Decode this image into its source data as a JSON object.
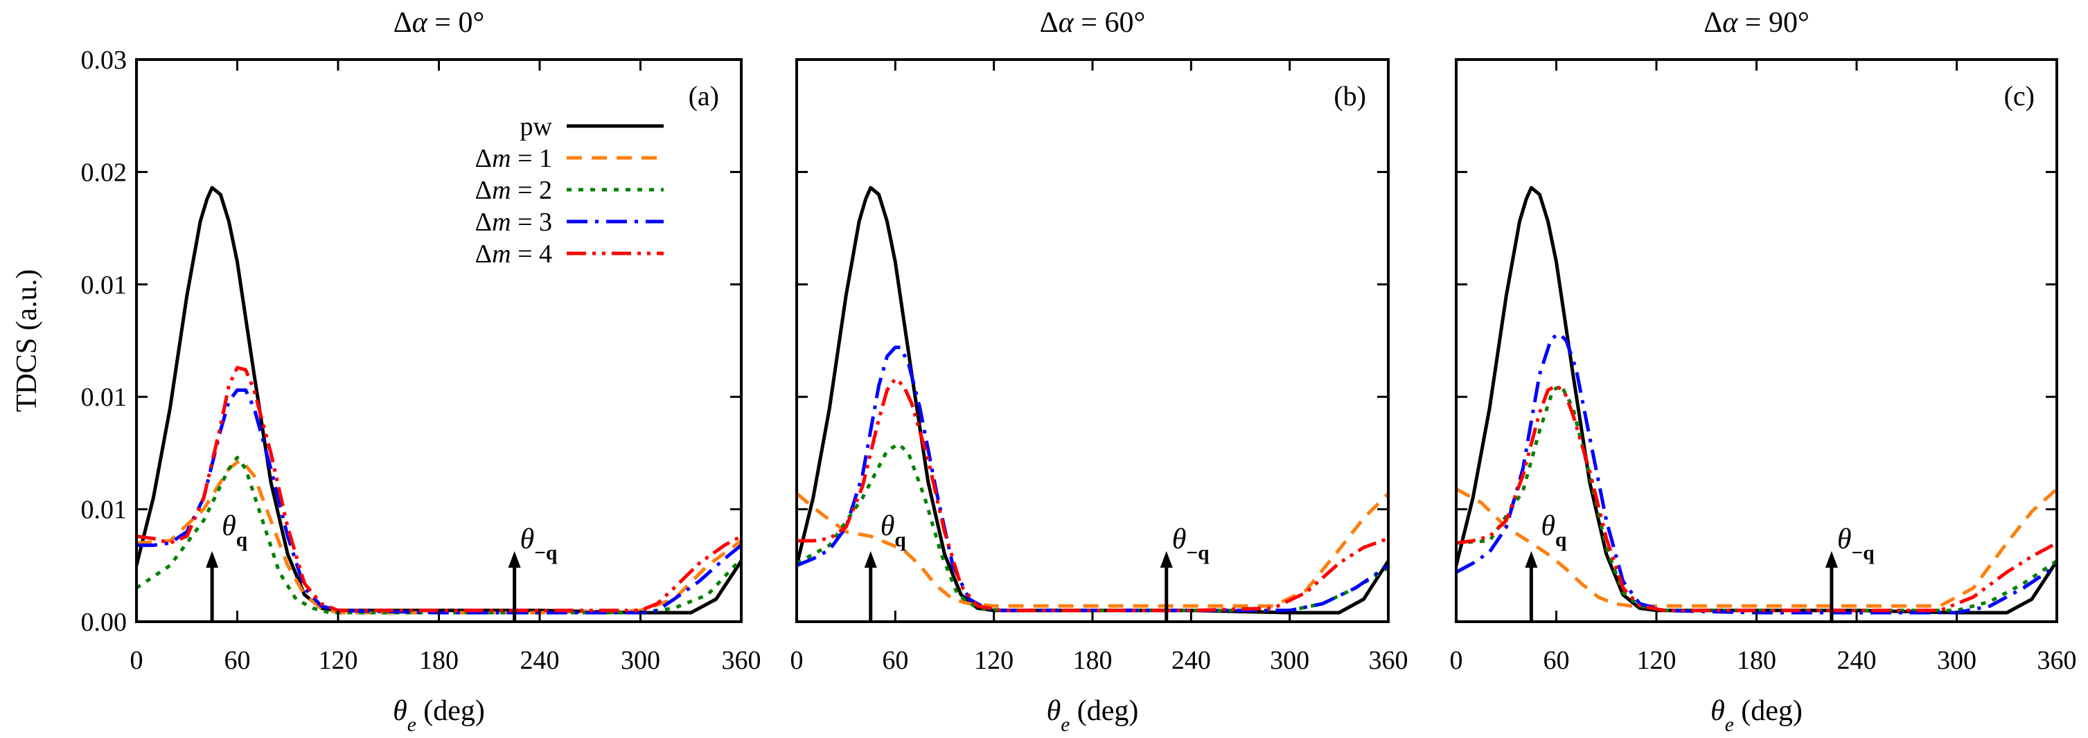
{
  "chart_data": [
    {
      "type": "line",
      "panel_label": "(a)",
      "title": "Δα = 0°",
      "xlabel": "θe (deg)",
      "ylabel": "TDCS (a.u.)",
      "xlim": [
        0,
        360
      ],
      "ylim": [
        0,
        0.025
      ],
      "xticks": [
        "0",
        "60",
        "120",
        "180",
        "240",
        "300",
        "360"
      ],
      "yticks": [
        "0.00",
        "0.01",
        "0.01",
        "0.01",
        "0.02",
        "0.03"
      ],
      "legend": {
        "position": "top-center",
        "entries": [
          "pw",
          "Δm = 1",
          "Δm = 2",
          "Δm = 3",
          "Δm = 4"
        ]
      },
      "annotations": [
        {
          "text": "θq",
          "x": 45
        },
        {
          "text": "θ−q",
          "x": 225
        }
      ],
      "series": [
        {
          "name": "pw",
          "color": "#000000",
          "dash": "solid",
          "x": [
            0,
            10,
            20,
            30,
            38,
            42,
            45,
            50,
            55,
            60,
            70,
            80,
            90,
            100,
            110,
            120,
            150,
            180,
            240,
            300,
            330,
            345,
            360
          ],
          "y": [
            0.0025,
            0.0055,
            0.0095,
            0.0145,
            0.0178,
            0.0188,
            0.0193,
            0.019,
            0.0178,
            0.016,
            0.011,
            0.0062,
            0.003,
            0.0012,
            0.0006,
            0.0005,
            0.0005,
            0.0005,
            0.0005,
            0.0004,
            0.0004,
            0.001,
            0.0027
          ]
        },
        {
          "name": "Δm = 1",
          "color": "#ff7f0e",
          "dash": "dashed",
          "x": [
            0,
            20,
            40,
            55,
            62,
            70,
            80,
            90,
            100,
            110,
            120,
            180,
            240,
            300,
            320,
            340,
            360
          ],
          "y": [
            0.0035,
            0.0036,
            0.005,
            0.0068,
            0.0072,
            0.0065,
            0.0045,
            0.0025,
            0.0012,
            0.0006,
            0.0004,
            0.0004,
            0.0004,
            0.0005,
            0.001,
            0.0025,
            0.0036
          ]
        },
        {
          "name": "Δm = 2",
          "color": "#008000",
          "dash": "dotted",
          "x": [
            0,
            20,
            40,
            55,
            60,
            65,
            75,
            85,
            95,
            105,
            115,
            130,
            180,
            240,
            300,
            320,
            340,
            360
          ],
          "y": [
            0.0015,
            0.0025,
            0.0045,
            0.0068,
            0.0073,
            0.0068,
            0.0045,
            0.0022,
            0.001,
            0.0006,
            0.0004,
            0.0004,
            0.0004,
            0.0004,
            0.0004,
            0.0006,
            0.0012,
            0.0028
          ]
        },
        {
          "name": "Δm = 3",
          "color": "#0000ff",
          "dash": "dashdot",
          "x": [
            0,
            10,
            20,
            30,
            40,
            50,
            55,
            60,
            65,
            70,
            80,
            90,
            100,
            110,
            120,
            180,
            240,
            300,
            310,
            320,
            335,
            350,
            360
          ],
          "y": [
            0.0034,
            0.0034,
            0.0035,
            0.004,
            0.0055,
            0.0085,
            0.0098,
            0.0103,
            0.0103,
            0.0095,
            0.0068,
            0.0038,
            0.0015,
            0.0007,
            0.0005,
            0.0004,
            0.0004,
            0.0004,
            0.0005,
            0.001,
            0.0018,
            0.0028,
            0.0034
          ]
        },
        {
          "name": "Δm = 4",
          "color": "#ff0000",
          "dash": "dashdotdot",
          "x": [
            0,
            10,
            20,
            30,
            40,
            50,
            55,
            60,
            65,
            70,
            80,
            90,
            100,
            110,
            120,
            180,
            240,
            300,
            310,
            320,
            335,
            350,
            360
          ],
          "y": [
            0.0038,
            0.0037,
            0.0035,
            0.0038,
            0.0055,
            0.0087,
            0.0105,
            0.0113,
            0.0112,
            0.0103,
            0.0075,
            0.0042,
            0.0017,
            0.0008,
            0.0005,
            0.0005,
            0.0005,
            0.0005,
            0.0008,
            0.0015,
            0.0026,
            0.0034,
            0.0038
          ]
        }
      ]
    },
    {
      "type": "line",
      "panel_label": "(b)",
      "title": "Δα = 60°",
      "xlabel": "θe (deg)",
      "xlim": [
        0,
        360
      ],
      "ylim": [
        0,
        0.025
      ],
      "xticks": [
        "0",
        "60",
        "120",
        "180",
        "240",
        "300",
        "360"
      ],
      "annotations": [
        {
          "text": "θq",
          "x": 45
        },
        {
          "text": "θ−q",
          "x": 225
        }
      ],
      "series": [
        {
          "name": "pw",
          "color": "#000000",
          "dash": "solid",
          "x": [
            0,
            10,
            20,
            30,
            38,
            42,
            45,
            50,
            55,
            60,
            70,
            80,
            90,
            100,
            110,
            120,
            150,
            180,
            240,
            300,
            330,
            345,
            360
          ],
          "y": [
            0.0025,
            0.0055,
            0.0095,
            0.0145,
            0.0178,
            0.0188,
            0.0193,
            0.019,
            0.0178,
            0.016,
            0.011,
            0.0062,
            0.003,
            0.0012,
            0.0006,
            0.0005,
            0.0005,
            0.0005,
            0.0005,
            0.0004,
            0.0004,
            0.001,
            0.0027
          ]
        },
        {
          "name": "Δm = 1",
          "color": "#ff7f0e",
          "dash": "dashed",
          "x": [
            0,
            15,
            30,
            45,
            55,
            65,
            75,
            85,
            95,
            105,
            120,
            180,
            240,
            290,
            310,
            330,
            345,
            360
          ],
          "y": [
            0.0057,
            0.0048,
            0.004,
            0.0038,
            0.0035,
            0.0032,
            0.0025,
            0.0016,
            0.001,
            0.0008,
            0.0007,
            0.0007,
            0.0007,
            0.0007,
            0.0014,
            0.0032,
            0.0046,
            0.0057
          ]
        },
        {
          "name": "Δm = 2",
          "color": "#008000",
          "dash": "dotted",
          "x": [
            0,
            20,
            40,
            55,
            62,
            68,
            78,
            88,
            98,
            110,
            125,
            180,
            240,
            300,
            320,
            340,
            360
          ],
          "y": [
            0.0026,
            0.0034,
            0.0055,
            0.0076,
            0.0079,
            0.0075,
            0.0055,
            0.003,
            0.0012,
            0.0006,
            0.0005,
            0.0005,
            0.0005,
            0.0005,
            0.0008,
            0.0015,
            0.0024
          ]
        },
        {
          "name": "Δm = 3",
          "color": "#0000ff",
          "dash": "dashdot",
          "x": [
            0,
            10,
            20,
            30,
            40,
            50,
            55,
            60,
            63,
            68,
            75,
            85,
            95,
            105,
            115,
            125,
            180,
            240,
            300,
            320,
            340,
            360
          ],
          "y": [
            0.0025,
            0.0028,
            0.0032,
            0.0042,
            0.0065,
            0.0105,
            0.0118,
            0.0122,
            0.0122,
            0.0115,
            0.0095,
            0.0058,
            0.0025,
            0.001,
            0.0006,
            0.0005,
            0.0005,
            0.0005,
            0.0005,
            0.0008,
            0.0015,
            0.0025
          ]
        },
        {
          "name": "Δm = 4",
          "color": "#ff0000",
          "dash": "dashdotdot",
          "x": [
            0,
            10,
            20,
            30,
            40,
            50,
            55,
            60,
            65,
            70,
            80,
            90,
            100,
            110,
            125,
            180,
            240,
            290,
            310,
            330,
            345,
            360
          ],
          "y": [
            0.0036,
            0.0036,
            0.0037,
            0.0042,
            0.006,
            0.009,
            0.0103,
            0.0108,
            0.0105,
            0.0097,
            0.0072,
            0.004,
            0.0016,
            0.0007,
            0.0005,
            0.0005,
            0.0005,
            0.0006,
            0.0013,
            0.0026,
            0.0033,
            0.0037
          ]
        }
      ]
    },
    {
      "type": "line",
      "panel_label": "(c)",
      "title": "Δα = 90°",
      "xlabel": "θe (deg)",
      "xlim": [
        0,
        360
      ],
      "ylim": [
        0,
        0.025
      ],
      "xticks": [
        "0",
        "60",
        "120",
        "180",
        "240",
        "300",
        "360"
      ],
      "annotations": [
        {
          "text": "θq",
          "x": 45
        },
        {
          "text": "θ−q",
          "x": 225
        }
      ],
      "series": [
        {
          "name": "pw",
          "color": "#000000",
          "dash": "solid",
          "x": [
            0,
            10,
            20,
            30,
            38,
            42,
            45,
            50,
            55,
            60,
            70,
            80,
            90,
            100,
            110,
            120,
            150,
            180,
            240,
            300,
            330,
            345,
            360
          ],
          "y": [
            0.0025,
            0.0055,
            0.0095,
            0.0145,
            0.0178,
            0.0188,
            0.0193,
            0.019,
            0.0178,
            0.016,
            0.011,
            0.0062,
            0.003,
            0.0012,
            0.0006,
            0.0005,
            0.0005,
            0.0005,
            0.0005,
            0.0004,
            0.0004,
            0.001,
            0.0027
          ]
        },
        {
          "name": "Δm = 1",
          "color": "#ff7f0e",
          "dash": "dashed",
          "x": [
            0,
            15,
            30,
            45,
            55,
            65,
            75,
            85,
            95,
            105,
            120,
            180,
            240,
            290,
            310,
            330,
            345,
            360
          ],
          "y": [
            0.0059,
            0.0053,
            0.0042,
            0.0035,
            0.003,
            0.0024,
            0.0017,
            0.0011,
            0.0008,
            0.0007,
            0.0007,
            0.0007,
            0.0007,
            0.0007,
            0.0015,
            0.0035,
            0.0049,
            0.0059
          ]
        },
        {
          "name": "Δm = 2",
          "color": "#008000",
          "dash": "dotted",
          "x": [
            0,
            20,
            40,
            50,
            58,
            63,
            70,
            80,
            90,
            100,
            110,
            125,
            180,
            240,
            300,
            320,
            340,
            360
          ],
          "y": [
            0.0035,
            0.0036,
            0.0058,
            0.0085,
            0.0103,
            0.0105,
            0.0095,
            0.0065,
            0.0033,
            0.0013,
            0.0007,
            0.0005,
            0.0005,
            0.0005,
            0.0005,
            0.0009,
            0.0017,
            0.0027
          ]
        },
        {
          "name": "Δm = 3",
          "color": "#0000ff",
          "dash": "dashdot",
          "x": [
            0,
            10,
            20,
            30,
            40,
            50,
            57,
            62,
            66,
            72,
            80,
            90,
            100,
            110,
            125,
            180,
            240,
            300,
            320,
            340,
            360
          ],
          "y": [
            0.0022,
            0.0026,
            0.0031,
            0.0042,
            0.0068,
            0.011,
            0.0126,
            0.0128,
            0.0125,
            0.0112,
            0.0082,
            0.0045,
            0.0018,
            0.0008,
            0.0005,
            0.0004,
            0.0004,
            0.0004,
            0.0007,
            0.0015,
            0.0025
          ]
        },
        {
          "name": "Δm = 4",
          "color": "#ff0000",
          "dash": "dashdotdot",
          "x": [
            0,
            10,
            20,
            30,
            40,
            50,
            55,
            60,
            65,
            70,
            80,
            90,
            100,
            110,
            125,
            180,
            240,
            290,
            310,
            330,
            345,
            360
          ],
          "y": [
            0.0035,
            0.0036,
            0.0038,
            0.0045,
            0.0065,
            0.0093,
            0.0103,
            0.0105,
            0.0102,
            0.0092,
            0.0067,
            0.0037,
            0.0015,
            0.0007,
            0.0005,
            0.0005,
            0.0005,
            0.0005,
            0.0011,
            0.0022,
            0.0029,
            0.0035
          ]
        }
      ]
    }
  ]
}
